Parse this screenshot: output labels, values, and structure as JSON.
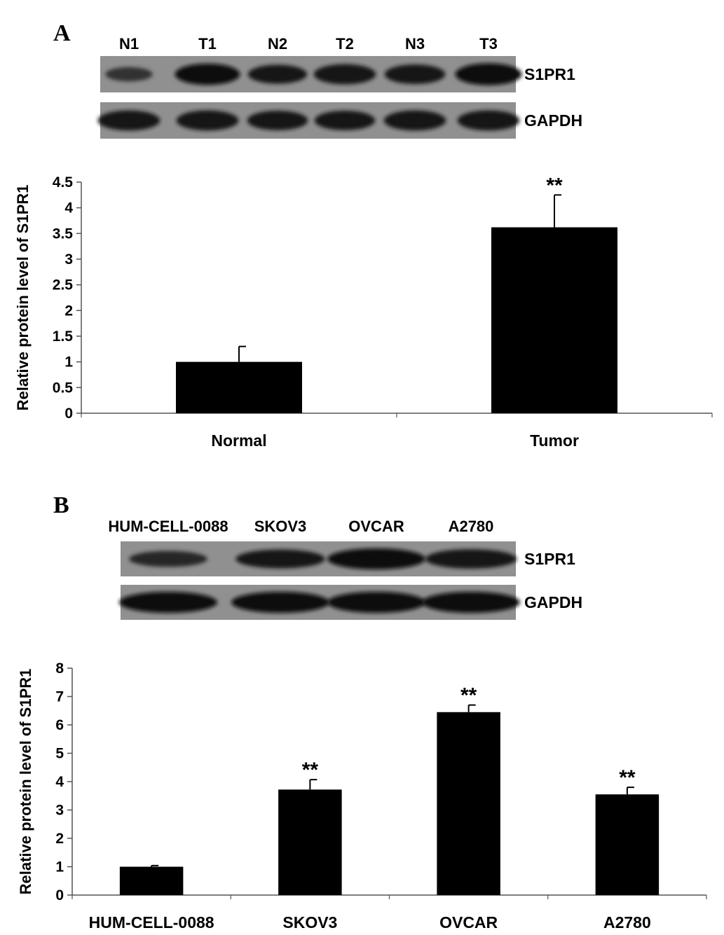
{
  "panels": [
    {
      "letter": "A",
      "blot": {
        "lanes": [
          "N1",
          "T1",
          "N2",
          "T2",
          "N3",
          "T3"
        ],
        "rows": [
          {
            "label": "S1PR1",
            "intensities": [
              0.35,
              0.95,
              0.75,
              0.85,
              0.8,
              1.0
            ]
          },
          {
            "label": "GAPDH",
            "intensities": [
              0.85,
              0.85,
              0.8,
              0.8,
              0.85,
              0.85
            ]
          }
        ]
      }
    },
    {
      "letter": "B",
      "blot": {
        "lanes": [
          "HUM-CELL-0088",
          "SKOV3",
          "OVCAR",
          "A2780"
        ],
        "rows": [
          {
            "label": "S1PR1",
            "intensities": [
              0.55,
              0.8,
              1.0,
              0.85
            ]
          },
          {
            "label": "GAPDH",
            "intensities": [
              1.0,
              1.0,
              1.0,
              1.0
            ]
          }
        ]
      }
    }
  ],
  "chart_data": [
    {
      "type": "bar",
      "categories": [
        "Normal",
        "Tumor"
      ],
      "values": [
        1.0,
        3.62
      ],
      "errors": [
        0.3,
        0.63
      ],
      "significance": [
        "",
        "**"
      ],
      "ylabel": "Relative protein level of S1PR1",
      "xlabel": "",
      "ylim": [
        0,
        4.5
      ],
      "yticks": [
        "0",
        "0.5",
        "1",
        "1.5",
        "2",
        "2.5",
        "3",
        "3.5",
        "4",
        "4.5"
      ],
      "bar_color": "#000000",
      "grid": false
    },
    {
      "type": "bar",
      "categories": [
        "HUM-CELL-0088",
        "SKOV3",
        "OVCAR",
        "A2780"
      ],
      "values": [
        1.0,
        3.72,
        6.45,
        3.55
      ],
      "errors": [
        0.04,
        0.35,
        0.25,
        0.25
      ],
      "significance": [
        "",
        "**",
        "**",
        "**"
      ],
      "ylabel": "Relative protein level of S1PR1",
      "xlabel": "",
      "ylim": [
        0,
        8
      ],
      "yticks": [
        "0",
        "1",
        "2",
        "3",
        "4",
        "5",
        "6",
        "7",
        "8"
      ],
      "bar_color": "#000000",
      "grid": false
    }
  ]
}
